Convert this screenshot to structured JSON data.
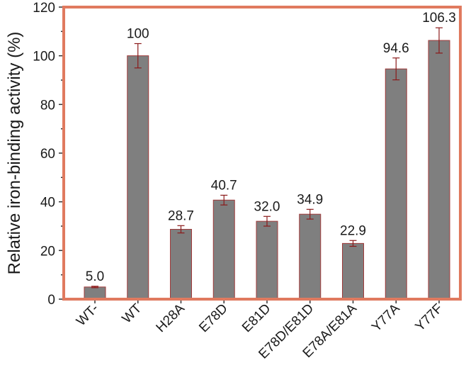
{
  "chart_data": {
    "type": "bar",
    "title": "",
    "xlabel": "",
    "ylabel": "Relative iron-binding activity (%)",
    "ylim": [
      0,
      120
    ],
    "yticks": [
      "0",
      "20",
      "40",
      "60",
      "80",
      "100",
      "120"
    ],
    "grid": false,
    "categories": [
      "WT-",
      "WT",
      "H28A",
      "E78D",
      "E81D",
      "E78D/E81D",
      "E78A/E81A",
      "Y77A",
      "Y77F"
    ],
    "values": [
      5.0,
      100,
      28.7,
      40.7,
      32.0,
      34.9,
      22.9,
      94.6,
      106.3
    ],
    "value_labels": [
      "5.0",
      "100",
      "28.7",
      "40.7",
      "32.0",
      "34.9",
      "22.9",
      "94.6",
      "106.3"
    ],
    "error": [
      0.3,
      5.0,
      1.5,
      2.0,
      2.0,
      2.0,
      1.2,
      4.5,
      5.2
    ],
    "colors": {
      "bar_fill": "#7f7f7f",
      "bar_stroke": "#a03a3a",
      "error_bar": "#8b1a1a",
      "frame": "#e07a5f"
    }
  }
}
